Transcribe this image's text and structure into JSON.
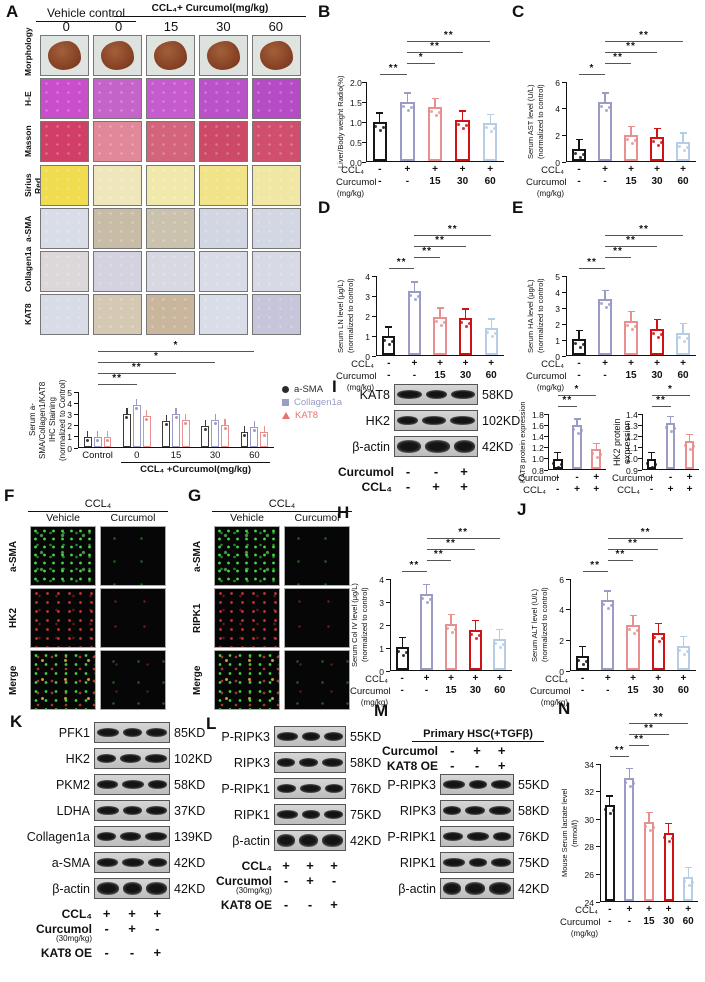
{
  "letters": {
    "a": "A",
    "b": "B",
    "c": "C",
    "d": "D",
    "e": "E",
    "f": "F",
    "g": "G",
    "h": "H",
    "i": "I",
    "j": "J",
    "k": "K",
    "l": "L",
    "m": "M",
    "n": "N"
  },
  "panel_a": {
    "header_left": "Vehicle control",
    "header_right": "CCL₄+ Curcumol(mg/kg)",
    "doses": [
      "0",
      "0",
      "15",
      "30",
      "60"
    ],
    "rows": [
      {
        "label": "Morphology",
        "type": "liver",
        "colors": [
          "#dfe4e1",
          "#dde2df",
          "#dfe4e1",
          "#dde2df",
          "#dfe4e1"
        ]
      },
      {
        "label": "H-E",
        "colors": [
          "#c94ecb",
          "#c564c8",
          "#c55bce",
          "#b952c8",
          "#b54cc6"
        ]
      },
      {
        "label": "Masson",
        "colors": [
          "#d23f66",
          "#e2889b",
          "#d3647c",
          "#cc4a68",
          "#d14f6e"
        ]
      },
      {
        "label": "Sirius Red",
        "colors": [
          "#f0dc4e",
          "#efe7bb",
          "#f1e9ac",
          "#f1e387",
          "#efe7a3"
        ]
      },
      {
        "label": "a-SMA",
        "colors": [
          "#d9dde8",
          "#c8bca6",
          "#cbc2ae",
          "#d2d5e2",
          "#d3d6e3"
        ]
      },
      {
        "label": "Collagen1a",
        "colors": [
          "#dcd8da",
          "#d4d2de",
          "#d8d8e3",
          "#d9dbe6",
          "#d7d9e4"
        ]
      },
      {
        "label": "KAT8",
        "colors": [
          "#d8dce6",
          "#d6c9b4",
          "#c9b69c",
          "#d9dde8",
          "#c6c5da"
        ]
      }
    ],
    "legend": [
      {
        "marker": "circle",
        "color": "#2b2b2b",
        "label": "a-SMA"
      },
      {
        "marker": "square",
        "color": "#9b9cc5",
        "label": "Collagen1a"
      },
      {
        "marker": "triangle",
        "color": "#e8726f",
        "label": "KAT8"
      }
    ]
  },
  "panel_f": {
    "header": "CCL₄",
    "columns": [
      "Vehicle",
      "Curcumol"
    ],
    "rows": [
      {
        "label": "a-SMA",
        "channel": "g"
      },
      {
        "label": "HK2",
        "channel": "r"
      },
      {
        "label": "Merge",
        "channel": "m"
      }
    ]
  },
  "panel_g": {
    "header": "CCL₄",
    "columns": [
      "Vehicle",
      "Curcumol"
    ],
    "rows": [
      {
        "label": "a-SMA",
        "channel": "g"
      },
      {
        "label": "RIPK1",
        "channel": "r"
      },
      {
        "label": "Merge",
        "channel": "m"
      }
    ]
  },
  "blots": [
    {
      "id": "I",
      "rows": [
        [
          "KAT8",
          "58KD"
        ],
        [
          "HK2",
          "102KD"
        ],
        [
          "β-actin",
          "42KD"
        ]
      ],
      "conditions": [
        {
          "label": "Curcumol",
          "cells": [
            "-",
            "-",
            "+"
          ]
        },
        {
          "label": "CCL₄",
          "cells": [
            "-",
            "+",
            "+"
          ]
        }
      ]
    },
    {
      "id": "K",
      "rows": [
        [
          "PFK1",
          "85KD"
        ],
        [
          "HK2",
          "102KD"
        ],
        [
          "PKM2",
          "58KD"
        ],
        [
          "LDHA",
          "37KD"
        ],
        [
          "Collagen1a",
          "139KD"
        ],
        [
          "a-SMA",
          "42KD"
        ],
        [
          "β-actin",
          "42KD"
        ]
      ],
      "conditions": [
        {
          "label": "CCL₄",
          "cells": [
            "+",
            "+",
            "+"
          ]
        },
        {
          "label": "Curcumol",
          "sub": "(30mg/kg)",
          "cells": [
            "-",
            "+",
            "-"
          ]
        },
        {
          "label": "KAT8 OE",
          "cells": [
            "-",
            "-",
            "+"
          ]
        }
      ]
    },
    {
      "id": "L",
      "rows": [
        [
          "P-RIPK3",
          "55KD"
        ],
        [
          "RIPK3",
          "58KD"
        ],
        [
          "P-RIPK1",
          "76KD"
        ],
        [
          "RIPK1",
          "75KD"
        ],
        [
          "β-actin",
          "42KD"
        ]
      ],
      "conditions": [
        {
          "label": "CCL₄",
          "cells": [
            "+",
            "+",
            "+"
          ]
        },
        {
          "label": "Curcumol",
          "sub": "(30mg/kg)",
          "cells": [
            "-",
            "+",
            "-"
          ]
        },
        {
          "label": "KAT8 OE",
          "cells": [
            "-",
            "-",
            "+"
          ]
        }
      ]
    },
    {
      "id": "M",
      "header": "Primary  HSC(+TGFβ)",
      "conditions_position": "top",
      "rows": [
        [
          "P-RIPK3",
          "55KD"
        ],
        [
          "RIPK3",
          "58KD"
        ],
        [
          "P-RIPK1",
          "76KD"
        ],
        [
          "RIPK1",
          "75KD"
        ],
        [
          "β-actin",
          "42KD"
        ]
      ],
      "conditions": [
        {
          "label": "Curcumol",
          "cells": [
            "-",
            "+",
            "+"
          ]
        },
        {
          "label": "KAT8 OE",
          "cells": [
            "-",
            "-",
            "+"
          ]
        }
      ]
    }
  ],
  "chart_data": [
    {
      "id": "A_ihc",
      "type": "bar",
      "grouped": true,
      "ylabel": [
        "Serum a-SMA/Collagen1/KAT8",
        "IHC Staining",
        "(normalized to Control)"
      ],
      "ylim": [
        0,
        5
      ],
      "yticks": [
        "0",
        "1",
        "2",
        "3",
        "4",
        "5"
      ],
      "categories": [
        "Control",
        "0",
        "15",
        "30",
        "60"
      ],
      "series": [
        {
          "name": "a-SMA",
          "color": "#3a3a3a",
          "values": [
            1.0,
            3.0,
            2.45,
            1.95,
            1.45
          ]
        },
        {
          "name": "Collagen1a",
          "color": "#9b9cc5",
          "values": [
            1.0,
            3.8,
            3.05,
            2.5,
            1.9
          ]
        },
        {
          "name": "KAT8",
          "color": "#e8908f",
          "values": [
            1.0,
            2.9,
            2.5,
            2.05,
            1.4
          ]
        }
      ],
      "group_label": {
        "from": 1,
        "to": 4,
        "text": "CCL₄ +Curcumol(mg/kg)"
      },
      "sig": [
        {
          "from": 0,
          "to": 1,
          "label": "**"
        },
        {
          "from": 0,
          "to": 2,
          "label": "**"
        },
        {
          "from": 0,
          "to": 3,
          "label": "*"
        },
        {
          "from": 0,
          "to": 4,
          "label": "*"
        }
      ]
    },
    {
      "id": "B_liver_body",
      "type": "bar",
      "ylabel": [
        "Liver/Body weight Radio(%)"
      ],
      "ylim": [
        0,
        2
      ],
      "yticks": [
        "0.0",
        "0.5",
        "1.0",
        "1.5",
        "2.0"
      ],
      "values": [
        1.0,
        1.5,
        1.37,
        1.05,
        0.97
      ],
      "colors": [
        "#161616",
        "#9b9cc5",
        "#e8908f",
        "#d01215",
        "#b7cde6"
      ],
      "x_rows": [
        {
          "label": "CCL₄",
          "cells": [
            "-",
            "+",
            "+",
            "+",
            "+"
          ]
        },
        {
          "label": "Curcumol",
          "cells": [
            "-",
            "-",
            "15",
            "30",
            "60"
          ]
        },
        {
          "label": "(mg/kg)",
          "cells": []
        }
      ],
      "sig": [
        {
          "from": 0,
          "to": 1,
          "label": "**"
        },
        {
          "from": 1,
          "to": 2,
          "label": "*"
        },
        {
          "from": 1,
          "to": 3,
          "label": "**"
        },
        {
          "from": 1,
          "to": 4,
          "label": "**"
        }
      ]
    },
    {
      "id": "C_ast",
      "type": "bar",
      "ylabel": [
        "Serum AST level (U/L)",
        "(normalized to control)"
      ],
      "ylim": [
        0,
        6
      ],
      "yticks": [
        "0",
        "2",
        "4",
        "6"
      ],
      "values": [
        1.0,
        4.5,
        2.0,
        1.85,
        1.5
      ],
      "colors": [
        "#161616",
        "#9b9cc5",
        "#e8908f",
        "#d01215",
        "#b7cde6"
      ],
      "x_rows": [
        {
          "label": "CCL₄",
          "cells": [
            "-",
            "+",
            "+",
            "+",
            "+"
          ]
        },
        {
          "label": "Curcumol",
          "cells": [
            "-",
            "-",
            "15",
            "30",
            "60"
          ]
        },
        {
          "label": "(mg/kg)",
          "cells": []
        }
      ],
      "sig": [
        {
          "from": 0,
          "to": 1,
          "label": "*"
        },
        {
          "from": 1,
          "to": 2,
          "label": "**"
        },
        {
          "from": 1,
          "to": 3,
          "label": "**"
        },
        {
          "from": 1,
          "to": 4,
          "label": "**"
        }
      ]
    },
    {
      "id": "D_ln",
      "type": "bar",
      "ylabel": [
        "Serum LN level (μg/L)",
        "(normalized to control)"
      ],
      "ylim": [
        0,
        4
      ],
      "yticks": [
        "0",
        "1",
        "2",
        "3",
        "4"
      ],
      "values": [
        1.0,
        3.25,
        1.95,
        1.9,
        1.4
      ],
      "colors": [
        "#161616",
        "#9b9cc5",
        "#e8908f",
        "#d01215",
        "#b7cde6"
      ],
      "x_rows": [
        {
          "label": "CCL₄",
          "cells": [
            "-",
            "+",
            "+",
            "+",
            "+"
          ]
        },
        {
          "label": "Curcumol",
          "cells": [
            "-",
            "-",
            "15",
            "30",
            "60"
          ]
        },
        {
          "label": "(mg/kg)",
          "cells": []
        }
      ],
      "sig": [
        {
          "from": 0,
          "to": 1,
          "label": "**"
        },
        {
          "from": 1,
          "to": 2,
          "label": "**"
        },
        {
          "from": 1,
          "to": 3,
          "label": "**"
        },
        {
          "from": 1,
          "to": 4,
          "label": "**"
        }
      ]
    },
    {
      "id": "E_ha",
      "type": "bar",
      "ylabel": [
        "Serum HA level (μg/L)",
        "(normalized to control)"
      ],
      "ylim": [
        0,
        5
      ],
      "yticks": [
        "0",
        "1",
        "2",
        "3",
        "4",
        "5"
      ],
      "values": [
        1.05,
        3.55,
        2.2,
        1.7,
        1.45
      ],
      "colors": [
        "#161616",
        "#9b9cc5",
        "#e8908f",
        "#d01215",
        "#b7cde6"
      ],
      "x_rows": [
        {
          "label": "CCL₄",
          "cells": [
            "-",
            "+",
            "+",
            "+",
            "+"
          ]
        },
        {
          "label": "Curcumol",
          "cells": [
            "-",
            "-",
            "15",
            "30",
            "60"
          ]
        },
        {
          "label": "(mg/kg)",
          "cells": []
        }
      ],
      "sig": [
        {
          "from": 0,
          "to": 1,
          "label": "**"
        },
        {
          "from": 1,
          "to": 2,
          "label": "**"
        },
        {
          "from": 1,
          "to": 3,
          "label": "**"
        },
        {
          "from": 1,
          "to": 4,
          "label": "**"
        }
      ]
    },
    {
      "id": "H_colIV",
      "type": "bar",
      "ylabel": [
        "Serum Col IV level (μg/L)",
        "(normalized to control)"
      ],
      "ylim": [
        0,
        4
      ],
      "yticks": [
        "0",
        "1",
        "2",
        "3",
        "4"
      ],
      "values": [
        1.05,
        3.35,
        2.05,
        1.8,
        1.4
      ],
      "colors": [
        "#161616",
        "#9b9cc5",
        "#e8908f",
        "#d01215",
        "#b7cde6"
      ],
      "x_rows": [
        {
          "label": "CCL₄",
          "cells": [
            "-",
            "+",
            "+",
            "+",
            "+"
          ]
        },
        {
          "label": "Curcumol",
          "cells": [
            "-",
            "-",
            "15",
            "30",
            "60"
          ]
        },
        {
          "label": "(mg/kg)",
          "cells": []
        }
      ],
      "sig": [
        {
          "from": 0,
          "to": 1,
          "label": "**"
        },
        {
          "from": 1,
          "to": 2,
          "label": "**"
        },
        {
          "from": 1,
          "to": 3,
          "label": "**"
        },
        {
          "from": 1,
          "to": 4,
          "label": "**"
        }
      ]
    },
    {
      "id": "I_kat8",
      "type": "bar",
      "ylabel": [
        "KAT8 protein expression"
      ],
      "ylim": [
        0.8,
        1.8
      ],
      "yticks": [
        "0.8",
        "1.0",
        "1.2",
        "1.4",
        "1.6",
        "1.8"
      ],
      "values": [
        1.0,
        1.6,
        1.17
      ],
      "colors": [
        "#161616",
        "#9b9cc5",
        "#e8908f"
      ],
      "x_rows": [
        {
          "label": "Curcumol",
          "cells": [
            "-",
            "-",
            "+"
          ]
        },
        {
          "label": "CCL₄",
          "cells": [
            "-",
            "+",
            "+"
          ]
        }
      ],
      "sig": [
        {
          "from": 0,
          "to": 1,
          "label": "**"
        },
        {
          "from": 0,
          "to": 2,
          "label": "*"
        }
      ]
    },
    {
      "id": "I_hk2",
      "type": "bar",
      "ylabel": [
        "HK2 protein expression"
      ],
      "ylim": [
        0.9,
        1.4
      ],
      "yticks": [
        "0.9",
        "1.0",
        "1.1",
        "1.2",
        "1.3",
        "1.4"
      ],
      "values": [
        1.0,
        1.32,
        1.16
      ],
      "colors": [
        "#161616",
        "#9b9cc5",
        "#e8908f"
      ],
      "x_rows": [
        {
          "label": "Curcumol",
          "cells": [
            "-",
            "-",
            "+"
          ]
        },
        {
          "label": "CCL₄",
          "cells": [
            "-",
            "+",
            "+"
          ]
        }
      ],
      "sig": [
        {
          "from": 0,
          "to": 1,
          "label": "**"
        },
        {
          "from": 0,
          "to": 2,
          "label": "*"
        }
      ]
    },
    {
      "id": "J_alt",
      "type": "bar",
      "ylabel": [
        "Serum ALT level (U/L)",
        "(normalized to control)"
      ],
      "ylim": [
        0,
        6
      ],
      "yticks": [
        "0",
        "2",
        "4",
        "6"
      ],
      "values": [
        1.0,
        4.6,
        3.0,
        2.5,
        1.65
      ],
      "colors": [
        "#161616",
        "#9b9cc5",
        "#e8908f",
        "#d01215",
        "#b7cde6"
      ],
      "x_rows": [
        {
          "label": "CCL₄",
          "cells": [
            "-",
            "+",
            "+",
            "+",
            "+"
          ]
        },
        {
          "label": "Curcumol",
          "cells": [
            "-",
            "-",
            "15",
            "30",
            "60"
          ]
        },
        {
          "label": "(mg/kg)",
          "cells": []
        }
      ],
      "sig": [
        {
          "from": 0,
          "to": 1,
          "label": "**"
        },
        {
          "from": 1,
          "to": 2,
          "label": "**"
        },
        {
          "from": 1,
          "to": 3,
          "label": "**"
        },
        {
          "from": 1,
          "to": 4,
          "label": "**"
        }
      ]
    },
    {
      "id": "N_lactate",
      "type": "bar",
      "ylabel": [
        "Mouse Serum lactate level",
        "(mmol/l)"
      ],
      "ylim": [
        24,
        34
      ],
      "yticks": [
        "24",
        "26",
        "28",
        "30",
        "32",
        "34"
      ],
      "values": [
        31.0,
        33.0,
        29.8,
        29.0,
        25.8
      ],
      "colors": [
        "#161616",
        "#9b9cc5",
        "#e8908f",
        "#d01215",
        "#b7cde6"
      ],
      "x_rows": [
        {
          "label": "CCL₄",
          "cells": [
            "-",
            "+",
            "+",
            "+",
            "+"
          ]
        },
        {
          "label": "Curcumol",
          "cells": [
            "-",
            "-",
            "15",
            "30",
            "60"
          ]
        },
        {
          "label": "(mg/kg)",
          "cells": []
        }
      ],
      "sig": [
        {
          "from": 0,
          "to": 1,
          "label": "**"
        },
        {
          "from": 1,
          "to": 2,
          "label": "**"
        },
        {
          "from": 1,
          "to": 3,
          "label": "**"
        },
        {
          "from": 1,
          "to": 4,
          "label": "**"
        }
      ]
    }
  ]
}
